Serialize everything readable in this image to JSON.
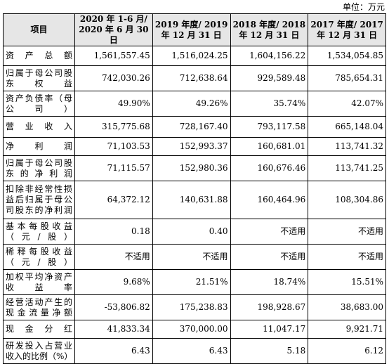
{
  "unit": "单位：万元",
  "headers": [
    "项目",
    "2020 年 1-6 月/ 2020 年 6 月 30 日",
    "2019 年度/ 2019 年 12 月 31 日",
    "2018 年度/ 2018 年 12 月 31 日",
    "2017 年度/ 2017 年 12 月 31 日"
  ],
  "rows": [
    {
      "label": "资产总额",
      "values": [
        "1,561,557.45",
        "1,516,024.25",
        "1,604,156.22",
        "1,534,054.85"
      ]
    },
    {
      "label": "归属于母公司股东权益",
      "values": [
        "742,030.26",
        "712,638.64",
        "929,589.48",
        "785,654.31"
      ]
    },
    {
      "label": "资产负债率（母公司）",
      "values": [
        "49.90%",
        "49.26%",
        "35.74%",
        "42.07%"
      ]
    },
    {
      "label": "营业收入",
      "values": [
        "315,775.68",
        "728,167.40",
        "793,117.58",
        "665,148.04"
      ]
    },
    {
      "label": "净利润",
      "values": [
        "71,103.53",
        "152,993.37",
        "160,681.01",
        "113,741.32"
      ]
    },
    {
      "label": "归属于母公司股东的净利润",
      "values": [
        "71,115.57",
        "152,980.36",
        "160,676.46",
        "113,741.25"
      ]
    },
    {
      "label": "扣除非经常性损益后归属于母公司股东的净利润",
      "values": [
        "64,372.12",
        "140,631.88",
        "160,464.96",
        "108,304.86"
      ]
    },
    {
      "label": "基本每股收益（元/股）",
      "values": [
        "0.18",
        "0.40",
        "不适用",
        "不适用"
      ]
    },
    {
      "label": "稀释每股收益（元/股）",
      "values": [
        "不适用",
        "不适用",
        "不适用",
        "不适用"
      ]
    },
    {
      "label": "加权平均净资产收益率",
      "values": [
        "9.68%",
        "21.51%",
        "18.74%",
        "15.51%"
      ]
    },
    {
      "label": "经营活动产生的现金流量净额",
      "values": [
        "-53,806.82",
        "175,238.83",
        "198,928.67",
        "38,683.00"
      ]
    },
    {
      "label": "现金分红",
      "values": [
        "41,833.34",
        "370,000.00",
        "11,047.17",
        "9,921.71"
      ]
    },
    {
      "label": "研发投入占营业收入的比例（%）",
      "values": [
        "6.43",
        "6.43",
        "5.18",
        "6.12"
      ]
    }
  ]
}
